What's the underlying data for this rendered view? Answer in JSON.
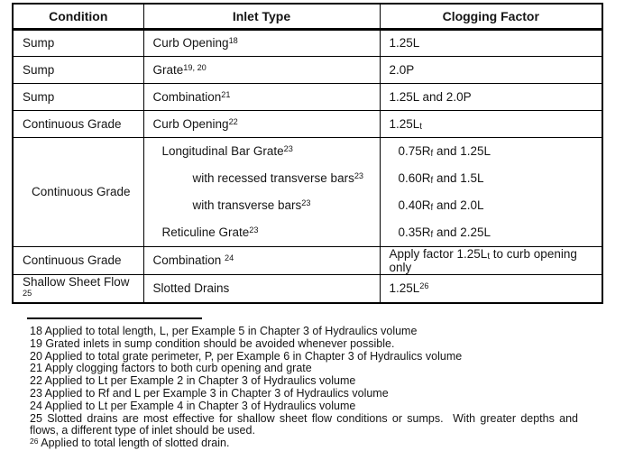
{
  "page": {
    "background": "#ffffff",
    "text_color": "#151515",
    "border_color": "#000000"
  },
  "table": {
    "headers": [
      "Condition",
      "Inlet Type",
      "Clogging Factor"
    ],
    "rows": [
      {
        "condition": [
          {
            "t": "Sump"
          }
        ],
        "inlet_lines": [
          {
            "segments": [
              {
                "t": "Curb Opening"
              },
              {
                "t": "18",
                "m": "sup"
              }
            ]
          }
        ],
        "factor_lines": [
          {
            "segments": [
              {
                "t": "1.25L"
              }
            ]
          }
        ]
      },
      {
        "condition": [
          {
            "t": "Sump"
          }
        ],
        "inlet_lines": [
          {
            "segments": [
              {
                "t": "Grate"
              },
              {
                "t": "19, 20",
                "m": "sup"
              }
            ]
          }
        ],
        "factor_lines": [
          {
            "segments": [
              {
                "t": "2.0P"
              }
            ]
          }
        ]
      },
      {
        "condition": [
          {
            "t": "Sump"
          }
        ],
        "inlet_lines": [
          {
            "segments": [
              {
                "t": "Combination"
              },
              {
                "t": "21",
                "m": "sup"
              }
            ]
          }
        ],
        "factor_lines": [
          {
            "segments": [
              {
                "t": "1.25L and 2.0P"
              }
            ]
          }
        ]
      },
      {
        "condition": [
          {
            "t": "Continuous Grade"
          }
        ],
        "inlet_lines": [
          {
            "segments": [
              {
                "t": "Curb Opening"
              },
              {
                "t": "22",
                "m": "sup"
              }
            ]
          }
        ],
        "factor_lines": [
          {
            "segments": [
              {
                "t": "1.25L"
              },
              {
                "t": "t",
                "m": "sub"
              }
            ]
          }
        ]
      },
      {
        "condition": [
          {
            "t": "Continuous Grade"
          }
        ],
        "inlet_lines": [
          {
            "segments": [
              {
                "t": "Longitudinal Bar Grate"
              },
              {
                "t": "23",
                "m": "sup"
              }
            ]
          },
          {
            "segments": [
              {
                "t": "with recessed transverse bars"
              },
              {
                "t": "23",
                "m": "sup"
              }
            ]
          },
          {
            "segments": [
              {
                "t": "with transverse bars"
              },
              {
                "t": "23",
                "m": "sup"
              }
            ]
          },
          {
            "segments": [
              {
                "t": "Reticuline Grate"
              },
              {
                "t": "23",
                "m": "sup"
              }
            ]
          }
        ],
        "factor_lines": [
          {
            "segments": [
              {
                "t": "0.75R"
              },
              {
                "t": "f",
                "m": "sub"
              },
              {
                "t": " and 1.25L"
              }
            ]
          },
          {
            "segments": [
              {
                "t": "0.60R"
              },
              {
                "t": "f",
                "m": "sub"
              },
              {
                "t": " and 1.5L"
              }
            ]
          },
          {
            "segments": [
              {
                "t": "0.40R"
              },
              {
                "t": "f",
                "m": "sub"
              },
              {
                "t": " and 2.0L"
              }
            ]
          },
          {
            "segments": [
              {
                "t": "0.35R"
              },
              {
                "t": "f",
                "m": "sub"
              },
              {
                "t": " and 2.25L"
              }
            ]
          }
        ]
      },
      {
        "condition": [
          {
            "t": "Continuous Grade"
          }
        ],
        "inlet_lines": [
          {
            "segments": [
              {
                "t": "Combination "
              },
              {
                "t": "24",
                "m": "sup"
              }
            ]
          }
        ],
        "factor_lines": [
          {
            "segments": [
              {
                "t": "Apply factor 1.25L"
              },
              {
                "t": "t",
                "m": "sub"
              },
              {
                "t": " to curb opening only"
              }
            ]
          }
        ]
      },
      {
        "condition": [
          {
            "t": "Shallow Sheet Flow "
          },
          {
            "t": "25",
            "m": "sup"
          }
        ],
        "inlet_lines": [
          {
            "segments": [
              {
                "t": "Slotted Drains"
              }
            ]
          }
        ],
        "factor_lines": [
          {
            "segments": [
              {
                "t": "1.25L"
              },
              {
                "t": "26",
                "m": "sup"
              }
            ]
          }
        ]
      }
    ]
  },
  "footnotes": [
    {
      "segments": [
        {
          "t": "18 Applied to total length, L, per Example 5 in Chapter 3 of Hydraulics volume"
        }
      ]
    },
    {
      "segments": [
        {
          "t": "19 Grated inlets in sump condition should be avoided whenever possible."
        }
      ]
    },
    {
      "segments": [
        {
          "t": "20 Applied to total grate perimeter, P, per Example 6 in Chapter 3 of Hydraulics volume"
        }
      ]
    },
    {
      "segments": [
        {
          "t": "21 Apply clogging factors to both curb opening and grate"
        }
      ]
    },
    {
      "segments": [
        {
          "t": "22 Applied to Lt per Example 2 in Chapter 3 of Hydraulics volume"
        }
      ]
    },
    {
      "segments": [
        {
          "t": "23 Applied to Rf and L per Example 3 in Chapter 3 of Hydraulics volume"
        }
      ]
    },
    {
      "segments": [
        {
          "t": "24 Applied to Lt per Example 4 in Chapter 3 of Hydraulics volume"
        }
      ]
    },
    {
      "segments": [
        {
          "t": "25 Slotted drains are most effective for shallow sheet flow conditions or sumps.  With greater depths and flows, a different type of inlet should be used."
        }
      ]
    },
    {
      "segments": [
        {
          "t": "26",
          "m": "sup"
        },
        {
          "t": " Applied to total length of slotted drain."
        }
      ]
    }
  ]
}
